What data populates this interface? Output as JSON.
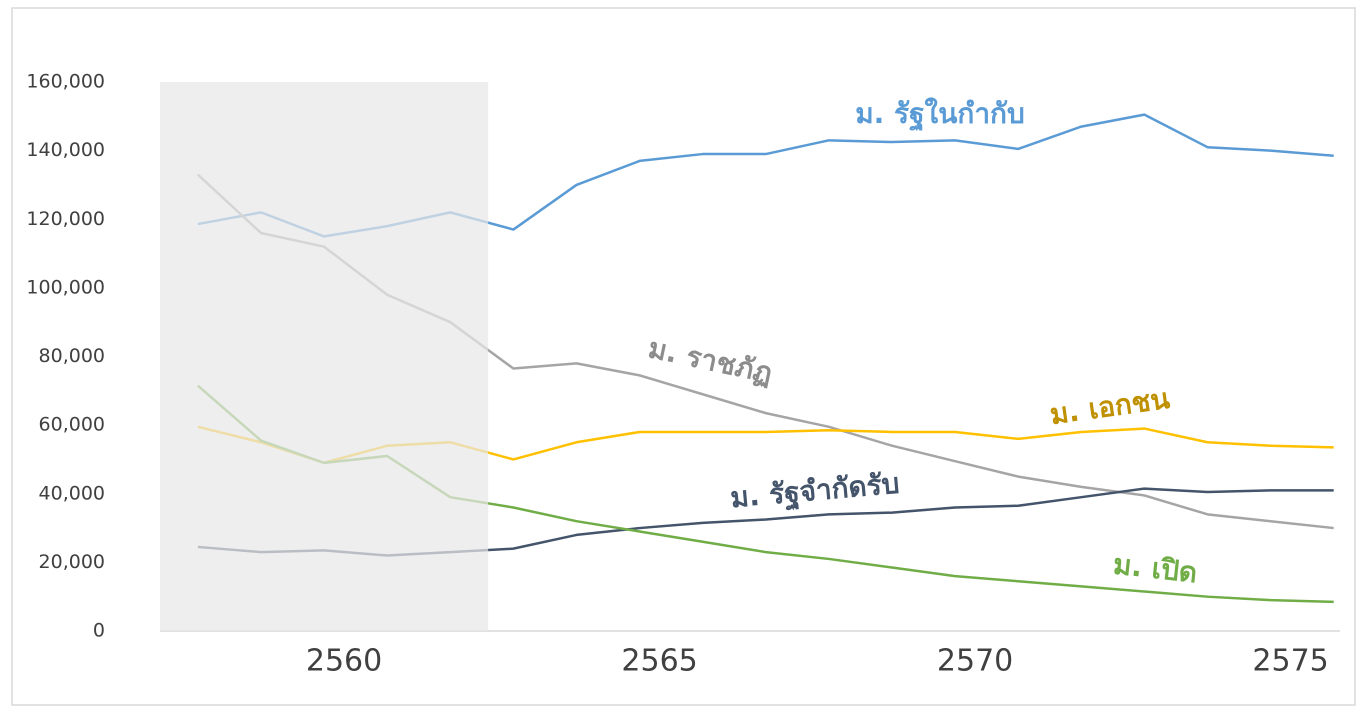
{
  "chart_data": {
    "type": "line",
    "x": [
      2558,
      2559,
      2560,
      2561,
      2562,
      2563,
      2564,
      2565,
      2566,
      2567,
      2568,
      2569,
      2570,
      2571,
      2572,
      2573,
      2574,
      2575,
      2576
    ],
    "series": [
      {
        "name": "ม. รัฐในกำกับ",
        "color": "#5b9bd5",
        "values": [
          118600,
          122000,
          115000,
          118000,
          122000,
          117000,
          130000,
          137000,
          139000,
          139000,
          143000,
          142500,
          143000,
          140500,
          147000,
          150500,
          141000,
          140000,
          138500
        ]
      },
      {
        "name": "ม. ราชภัฏ",
        "color": "#a5a5a5",
        "values": [
          133000,
          116000,
          112000,
          98000,
          90000,
          76500,
          78000,
          74500,
          69000,
          63500,
          59500,
          54000,
          49500,
          45000,
          42000,
          39500,
          34000,
          32000,
          30000
        ]
      },
      {
        "name": "ม. เอกชน",
        "color": "#ffc000",
        "values": [
          59500,
          55000,
          49000,
          54000,
          55000,
          50000,
          55000,
          58000,
          58000,
          58000,
          58500,
          58000,
          58000,
          56000,
          58000,
          59000,
          55000,
          54000,
          53500
        ]
      },
      {
        "name": "ม. รัฐจำกัดรับ",
        "color": "#44546a",
        "values": [
          24500,
          23000,
          23500,
          22000,
          23000,
          24000,
          28000,
          30000,
          31500,
          32500,
          34000,
          34500,
          36000,
          36500,
          39000,
          41500,
          40500,
          41000,
          41000
        ]
      },
      {
        "name": "ม. เปิด",
        "color": "#70ad47",
        "values": [
          71500,
          55500,
          49000,
          51000,
          39000,
          36000,
          32000,
          29000,
          26000,
          23000,
          21000,
          18500,
          16000,
          14500,
          13000,
          11500,
          10000,
          9000,
          8500
        ]
      }
    ],
    "xlim": [
      2557.4,
      2576.1
    ],
    "xticks": [
      2560,
      2565,
      2570,
      2575
    ],
    "ylim": [
      0,
      160000
    ],
    "yticks": [
      0,
      {
        "value": 20000,
        "label": "20,000"
      },
      {
        "value": 40000,
        "label": "40,000"
      },
      {
        "value": 60000,
        "label": "60,000"
      },
      {
        "value": 80000,
        "label": "80,000"
      },
      {
        "value": 100000,
        "label": "100,000"
      },
      {
        "value": 120000,
        "label": "120,000"
      },
      {
        "value": 140000,
        "label": "140,000"
      },
      {
        "value": 160000,
        "label": "160,000"
      }
    ],
    "shaded_xrange": [
      2557.4,
      2562.6
    ],
    "grid": false
  }
}
